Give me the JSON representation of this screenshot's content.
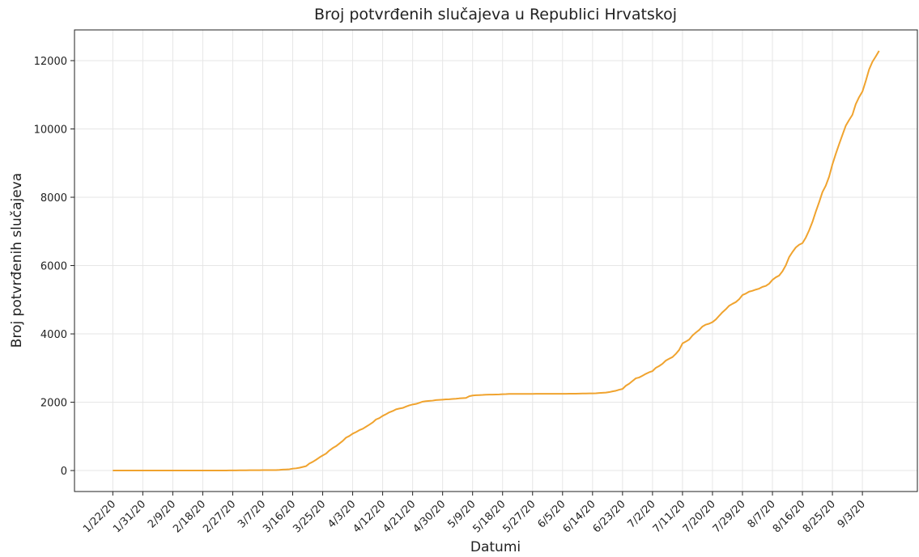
{
  "chart_data": {
    "type": "line",
    "title": "Broj potvrđenih slučajeva u Republici Hrvatskoj",
    "x_label": "Datumi",
    "y_label": "Broj potvrđenih slučajeva",
    "color": "#f0a32e",
    "grid": true,
    "ylim": [
      -614,
      12899
    ],
    "yticks": [
      0,
      2000,
      4000,
      6000,
      8000,
      10000,
      12000
    ],
    "categories": [
      "1/22/20",
      null,
      null,
      null,
      null,
      null,
      null,
      null,
      null,
      "1/31/20",
      null,
      null,
      null,
      null,
      null,
      null,
      null,
      null,
      "2/9/20",
      null,
      null,
      null,
      null,
      null,
      null,
      null,
      null,
      "2/18/20",
      null,
      null,
      null,
      null,
      null,
      null,
      null,
      null,
      "2/27/20",
      null,
      null,
      null,
      null,
      null,
      null,
      null,
      null,
      "3/7/20",
      null,
      null,
      null,
      null,
      null,
      null,
      null,
      null,
      "3/16/20",
      null,
      null,
      null,
      null,
      null,
      null,
      null,
      null,
      "3/25/20",
      null,
      null,
      null,
      null,
      null,
      null,
      null,
      null,
      "4/3/20",
      null,
      null,
      null,
      null,
      null,
      null,
      null,
      null,
      "4/12/20",
      null,
      null,
      null,
      null,
      null,
      null,
      null,
      null,
      "4/21/20",
      null,
      null,
      null,
      null,
      null,
      null,
      null,
      null,
      "4/30/20",
      null,
      null,
      null,
      null,
      null,
      null,
      null,
      null,
      "5/9/20",
      null,
      null,
      null,
      null,
      null,
      null,
      null,
      null,
      "5/18/20",
      null,
      null,
      null,
      null,
      null,
      null,
      null,
      null,
      "5/27/20",
      null,
      null,
      null,
      null,
      null,
      null,
      null,
      null,
      "6/5/20",
      null,
      null,
      null,
      null,
      null,
      null,
      null,
      null,
      "6/14/20",
      null,
      null,
      null,
      null,
      null,
      null,
      null,
      null,
      "6/23/20",
      null,
      null,
      null,
      null,
      null,
      null,
      null,
      null,
      "7/2/20",
      null,
      null,
      null,
      null,
      null,
      null,
      null,
      null,
      "7/11/20",
      null,
      null,
      null,
      null,
      null,
      null,
      null,
      null,
      "7/20/20",
      null,
      null,
      null,
      null,
      null,
      null,
      null,
      null,
      "7/29/20",
      null,
      null,
      null,
      null,
      null,
      null,
      null,
      null,
      "8/7/20",
      null,
      null,
      null,
      null,
      null,
      null,
      null,
      null,
      "8/16/20",
      null,
      null,
      null,
      null,
      null,
      null,
      null,
      null,
      "8/25/20",
      null,
      null,
      null,
      null,
      null,
      null,
      null,
      null,
      "9/3/20",
      null,
      null,
      null,
      null,
      null
    ],
    "values": [
      0,
      0,
      0,
      0,
      0,
      0,
      0,
      0,
      0,
      0,
      0,
      0,
      0,
      0,
      0,
      0,
      0,
      0,
      0,
      0,
      0,
      0,
      0,
      0,
      0,
      0,
      0,
      0,
      0,
      0,
      0,
      0,
      0,
      0,
      1,
      3,
      3,
      5,
      6,
      7,
      7,
      9,
      10,
      11,
      11,
      12,
      12,
      12,
      13,
      14,
      19,
      27,
      32,
      38,
      56,
      65,
      81,
      105,
      128,
      206,
      254,
      315,
      382,
      442,
      495,
      586,
      657,
      713,
      790,
      867,
      963,
      1011,
      1079,
      1126,
      1182,
      1222,
      1282,
      1343,
      1407,
      1495,
      1534,
      1600,
      1650,
      1704,
      1741,
      1791,
      1814,
      1832,
      1871,
      1908,
      1934,
      1950,
      1981,
      2016,
      2030,
      2039,
      2047,
      2062,
      2068,
      2076,
      2085,
      2088,
      2096,
      2101,
      2112,
      2119,
      2125,
      2176,
      2196,
      2205,
      2209,
      2213,
      2221,
      2222,
      2224,
      2226,
      2228,
      2234,
      2237,
      2243,
      2244,
      2244,
      2244,
      2244,
      2245,
      2245,
      2245,
      2246,
      2246,
      2246,
      2247,
      2247,
      2247,
      2247,
      2247,
      2247,
      2247,
      2249,
      2249,
      2250,
      2252,
      2254,
      2255,
      2258,
      2258,
      2262,
      2269,
      2277,
      2283,
      2296,
      2317,
      2336,
      2366,
      2388,
      2483,
      2542,
      2623,
      2701,
      2725,
      2777,
      2831,
      2877,
      2912,
      3008,
      3060,
      3126,
      3220,
      3272,
      3322,
      3416,
      3532,
      3722,
      3775,
      3835,
      3953,
      4039,
      4115,
      4218,
      4272,
      4300,
      4345,
      4422,
      4530,
      4634,
      4722,
      4824,
      4881,
      4931,
      5016,
      5138,
      5180,
      5238,
      5262,
      5297,
      5325,
      5376,
      5404,
      5470,
      5582,
      5656,
      5709,
      5832,
      6006,
      6247,
      6397,
      6530,
      6610,
      6658,
      6818,
      7030,
      7278,
      7575,
      7852,
      8150,
      8339,
      8600,
      8964,
      9268,
      9553,
      9824,
      10094,
      10260,
      10414,
      10725,
      10930,
      11094,
      11400,
      11739,
      11964,
      12121,
      12285
    ]
  }
}
